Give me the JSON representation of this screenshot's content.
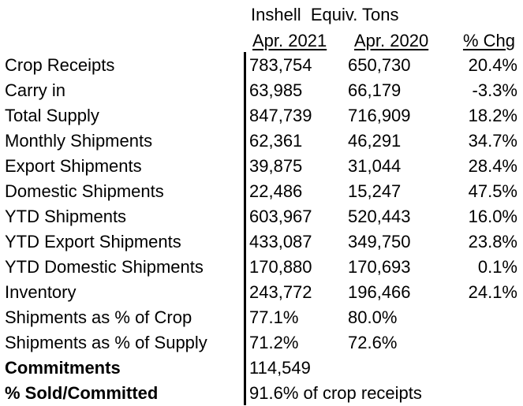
{
  "header": {
    "title": "Inshell  Equiv. Tons",
    "col1": "Apr. 2021",
    "col2": "Apr. 2020",
    "col3": "% Chg"
  },
  "rows": [
    {
      "label": "Crop Receipts",
      "apr2021": "783,754",
      "apr2020": "650,730",
      "chg": "20.4%"
    },
    {
      "label": "Carry in",
      "apr2021": "63,985",
      "apr2020": "66,179",
      "chg": "-3.3%"
    },
    {
      "label": "Total Supply",
      "apr2021": "847,739",
      "apr2020": "716,909",
      "chg": "18.2%"
    },
    {
      "label": "Monthly Shipments",
      "apr2021": "62,361",
      "apr2020": "46,291",
      "chg": "34.7%"
    },
    {
      "label": "Export Shipments",
      "apr2021": "39,875",
      "apr2020": "31,044",
      "chg": "28.4%"
    },
    {
      "label": "Domestic Shipments",
      "apr2021": "22,486",
      "apr2020": "15,247",
      "chg": "47.5%"
    },
    {
      "label": "YTD Shipments",
      "apr2021": "603,967",
      "apr2020": "520,443",
      "chg": "16.0%"
    },
    {
      "label": "YTD Export Shipments",
      "apr2021": "433,087",
      "apr2020": "349,750",
      "chg": "23.8%"
    },
    {
      "label": "YTD Domestic Shipments",
      "apr2021": "170,880",
      "apr2020": "170,693",
      "chg": "0.1%"
    },
    {
      "label": "Inventory",
      "apr2021": "243,772",
      "apr2020": "196,466",
      "chg": "24.1%"
    },
    {
      "label": "Shipments as % of Crop",
      "apr2021": "77.1%",
      "apr2020": "80.0%",
      "chg": ""
    },
    {
      "label": "Shipments as % of Supply",
      "apr2021": "71.2%",
      "apr2020": "72.6%",
      "chg": ""
    },
    {
      "label": "Commitments",
      "apr2021": "114,549",
      "apr2020": "",
      "chg": ""
    },
    {
      "label": "% Sold/Committed",
      "apr2021": "91.6% of crop receipts",
      "apr2020": "",
      "chg": ""
    }
  ],
  "bold_labels": [
    "Commitments",
    "% Sold/Committed"
  ]
}
